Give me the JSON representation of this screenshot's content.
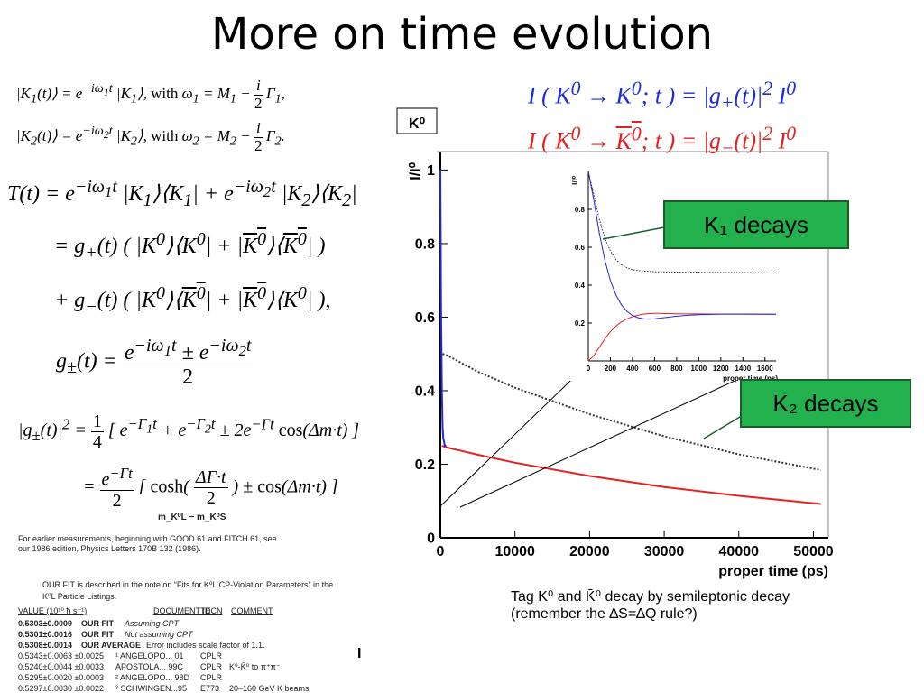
{
  "slide": {
    "title": "More on time evolution",
    "stray_mark": "I"
  },
  "equations": {
    "k1": "|K₁(t)⟩ = e^(−iω₁t) |K₁⟩, with ω₁ = M₁ − (i/2)Γ₁,",
    "k2": "|K₂(t)⟩ = e^(−iω₂t) |K₂⟩, with ω₂ = M₂ − (i/2)Γ₂.",
    "T1": "T(t) = e^(−iω₁t) |K₁⟩⟨K₁| + e^(−iω₂t) |K₂⟩⟨K₂|",
    "T2": "= g₊(t) ( |K⁰⟩⟨K⁰| + |K̄⁰⟩⟨K̄⁰| )",
    "T3": "+ g₋(t) ( |K⁰⟩⟨K̄⁰| + |K̄⁰⟩⟨K⁰| ),",
    "g": "g±(t) = (e^(−iω₁t) ± e^(−iω₂t)) / 2",
    "gsq1": "|g±(t)|² = ¼ [ e^(−Γ₁t) + e^(−Γ₂t) ± 2e^(−Γt) cos(Δm·t) ]",
    "gsq2": "= (e^(−Γt)/2) [ cosh(ΔΓ·t/2) ± cos(Δm·t) ]",
    "intensity_blue": "I ( K⁰ → K⁰; t ) = |g₊(t)|² I⁰",
    "intensity_red": "I ( K⁰ → K̄⁰; t ) = |g₋(t)|² I⁰"
  },
  "pdg": {
    "header": "m_K⁰L − m_K⁰S",
    "note1": "For earlier measurements, beginning with GOOD 61 and FITCH 61, see",
    "note2": "our 1986 edition, Physics Letters 170B 132 (1986).",
    "fit1": "OUR FIT is described in the note on “Fits for K⁰L CP-Violation Parameters” in the",
    "fit2": "K⁰L Particle Listings.",
    "columns": [
      "VALUE (10¹⁰ ħ s⁻¹)",
      "DOCUMENT ID",
      "TECN",
      "COMMENT"
    ],
    "rows": [
      [
        "0.5303±0.0009",
        "OUR FIT",
        "",
        "Assuming CPT"
      ],
      [
        "0.5301±0.0016",
        "OUR FIT",
        "",
        "Not assuming CPT"
      ],
      [
        "0.5308±0.0014",
        "OUR AVERAGE",
        "",
        "Error includes scale factor of 1.1."
      ],
      [
        "0.5343±0.0063 ±0.0025",
        "¹ ANGELOPO... 01",
        "CPLR",
        ""
      ],
      [
        "0.5240±0.0044 ±0.0033",
        "APOSTOLA... 99C",
        "CPLR",
        "K⁰-K̄⁰ to π⁺π⁻"
      ],
      [
        "0.5295±0.0020 ±0.0003",
        "² ANGELOPO... 98D",
        "CPLR",
        ""
      ],
      [
        "0.5297±0.0030 ±0.0022",
        "³ SCHWINGEN...95",
        "E773",
        "20–160 GeV K beams"
      ]
    ]
  },
  "chart_data": [
    {
      "type": "line",
      "panel_label": "K⁰",
      "xlabel": "proper time (ps)",
      "ylabel": "I/I⁰",
      "xlim": [
        0,
        52000
      ],
      "ylim": [
        0,
        1.05
      ],
      "xticks": [
        "0",
        "10000",
        "20000",
        "30000",
        "40000",
        "50000"
      ],
      "yticks": [
        "0",
        "0.2",
        "0.4",
        "0.6",
        "0.8",
        "1"
      ],
      "series": [
        {
          "color": "#e32222",
          "style": "solid",
          "x": [
            200,
            1000,
            5000,
            10000,
            20000,
            30000,
            40000,
            51000
          ],
          "values": [
            0.25,
            0.245,
            0.226,
            0.204,
            0.168,
            0.138,
            0.114,
            0.092
          ]
        },
        {
          "color": "#333333",
          "style": "dotted",
          "x": [
            300,
            1000,
            5000,
            10000,
            20000,
            30000,
            40000,
            51000
          ],
          "values": [
            0.5,
            0.495,
            0.452,
            0.408,
            0.336,
            0.276,
            0.227,
            0.184
          ]
        },
        {
          "color": "#1f2bd6",
          "style": "solid",
          "x": [
            0,
            100,
            200,
            300,
            400,
            600,
            800
          ],
          "values": [
            1.0,
            0.62,
            0.4,
            0.3,
            0.27,
            0.25,
            0.25
          ]
        }
      ]
    },
    {
      "type": "line",
      "xlabel": "proper time (ps)",
      "ylabel": "I/I⁰",
      "xlim": [
        0,
        1700
      ],
      "ylim": [
        0,
        1.0
      ],
      "xticks": [
        "0",
        "200",
        "400",
        "600",
        "800",
        "1000",
        "1200",
        "1400",
        "1600"
      ],
      "yticks": [
        "0.2",
        "0.4",
        "0.6",
        "0.8"
      ],
      "series": [
        {
          "color": "#e32222",
          "style": "solid",
          "x": [
            0,
            50,
            100,
            150,
            200,
            250,
            300,
            350,
            400,
            450,
            500,
            550,
            600,
            650,
            700,
            800,
            900,
            1000,
            1200,
            1400,
            1700
          ],
          "values": [
            0.0,
            0.028,
            0.072,
            0.117,
            0.155,
            0.184,
            0.206,
            0.222,
            0.234,
            0.242,
            0.247,
            0.25,
            0.251,
            0.251,
            0.25,
            0.249,
            0.248,
            0.248,
            0.247,
            0.247,
            0.246
          ]
        },
        {
          "color": "#1f2bd6",
          "style": "solid",
          "x": [
            0,
            50,
            100,
            150,
            200,
            250,
            300,
            350,
            400,
            450,
            500,
            550,
            600,
            650,
            700,
            800,
            900,
            1000,
            1200,
            1400,
            1700
          ],
          "values": [
            1.0,
            0.848,
            0.674,
            0.53,
            0.424,
            0.348,
            0.296,
            0.262,
            0.24,
            0.228,
            0.222,
            0.221,
            0.222,
            0.226,
            0.229,
            0.236,
            0.241,
            0.244,
            0.247,
            0.247,
            0.246
          ]
        },
        {
          "color": "#333333",
          "style": "dotted",
          "x": [
            0,
            50,
            100,
            150,
            200,
            250,
            300,
            350,
            400,
            450,
            500,
            600,
            700,
            800,
            1000,
            1200,
            1400,
            1700
          ],
          "values": [
            1.0,
            0.876,
            0.746,
            0.647,
            0.579,
            0.535,
            0.508,
            0.492,
            0.482,
            0.477,
            0.474,
            0.471,
            0.47,
            0.469,
            0.468,
            0.467,
            0.466,
            0.465
          ]
        }
      ]
    }
  ],
  "callouts": {
    "k1": "K₁ decays",
    "k2": "K₂ decays"
  },
  "caption": {
    "line1": "Tag K⁰ and K̄⁰ decay by semileptonic decay",
    "line2": "(remember the ∆S=∆Q rule?)"
  }
}
